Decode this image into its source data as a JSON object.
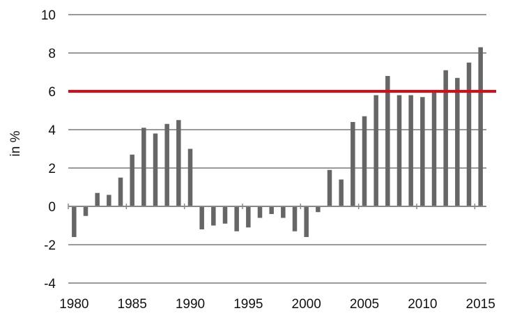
{
  "chart_data": {
    "type": "bar",
    "ylabel": "in %",
    "xlabel": "",
    "title": "",
    "ylim": [
      -4,
      10
    ],
    "yticks": [
      -4,
      -2,
      0,
      2,
      4,
      6,
      8,
      10
    ],
    "xlim": [
      1980,
      2015
    ],
    "xticks": [
      1980,
      1985,
      1990,
      1995,
      2000,
      2005,
      2010,
      2015
    ],
    "grid": true,
    "series": [
      {
        "values": [
          {
            "x": 1980,
            "y": -1.6
          },
          {
            "x": 1981,
            "y": -0.5
          },
          {
            "x": 1982,
            "y": 0.7
          },
          {
            "x": 1983,
            "y": 0.6
          },
          {
            "x": 1984,
            "y": 1.5
          },
          {
            "x": 1985,
            "y": 2.7
          },
          {
            "x": 1986,
            "y": 4.1
          },
          {
            "x": 1987,
            "y": 3.8
          },
          {
            "x": 1988,
            "y": 4.3
          },
          {
            "x": 1989,
            "y": 4.5
          },
          {
            "x": 1990,
            "y": 3.0
          },
          {
            "x": 1991,
            "y": -1.2
          },
          {
            "x": 1992,
            "y": -1.0
          },
          {
            "x": 1993,
            "y": -0.9
          },
          {
            "x": 1994,
            "y": -1.3
          },
          {
            "x": 1995,
            "y": -1.1
          },
          {
            "x": 1996,
            "y": -0.6
          },
          {
            "x": 1997,
            "y": -0.4
          },
          {
            "x": 1998,
            "y": -0.6
          },
          {
            "x": 1999,
            "y": -1.3
          },
          {
            "x": 2000,
            "y": -1.6
          },
          {
            "x": 2001,
            "y": -0.3
          },
          {
            "x": 2002,
            "y": 1.9
          },
          {
            "x": 2003,
            "y": 1.4
          },
          {
            "x": 2004,
            "y": 4.4
          },
          {
            "x": 2005,
            "y": 4.7
          },
          {
            "x": 2006,
            "y": 5.8
          },
          {
            "x": 2007,
            "y": 6.8
          },
          {
            "x": 2008,
            "y": 5.8
          },
          {
            "x": 2009,
            "y": 5.8
          },
          {
            "x": 2010,
            "y": 5.7
          },
          {
            "x": 2011,
            "y": 6.0
          },
          {
            "x": 2012,
            "y": 7.1
          },
          {
            "x": 2013,
            "y": 6.7
          },
          {
            "x": 2014,
            "y": 7.5
          },
          {
            "x": 2015,
            "y": 8.3
          }
        ]
      }
    ],
    "reference_line": {
      "y": 6
    }
  },
  "colors": {
    "bar": "#666666",
    "gridline": "#999999",
    "reference_line": "#e30613",
    "axis": "#888888",
    "text": "#111111"
  }
}
